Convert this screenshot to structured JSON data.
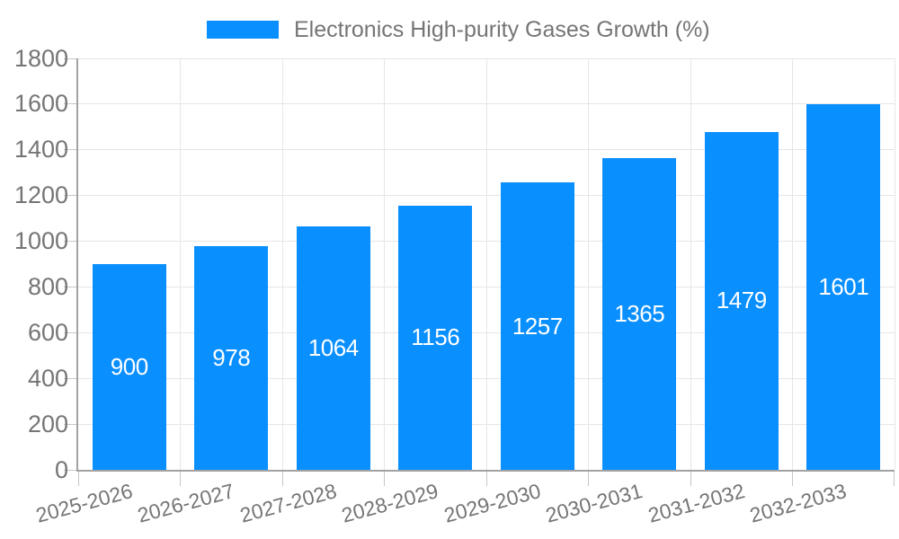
{
  "chart_data": {
    "type": "bar",
    "legend_label": "Electronics High-purity Gases Growth (%)",
    "legend_position": "top",
    "categories": [
      "2025-2026",
      "2026-2027",
      "2027-2028",
      "2028-2029",
      "2029-2030",
      "2030-2031",
      "2031-2032",
      "2032-2033"
    ],
    "values": [
      900,
      978,
      1064,
      1156,
      1257,
      1365,
      1479,
      1601
    ],
    "bar_value_labels": [
      "900",
      "978",
      "1064",
      "1156",
      "1257",
      "1365",
      "1479",
      "1601"
    ],
    "ylim": [
      0,
      1800
    ],
    "ytick_step": 200,
    "yticks": [
      0,
      200,
      400,
      600,
      800,
      1000,
      1200,
      1400,
      1600,
      1800
    ],
    "grid": true,
    "x_label_rotation_deg": -15,
    "colors": {
      "bar": "#0a8fff",
      "value_label": "#ffffff",
      "axis_text": "#757575",
      "grid_line": "#e6e6e6",
      "axis_line": "#a2a2a2",
      "tick": "#c6c6c6",
      "background": "#ffffff"
    }
  }
}
